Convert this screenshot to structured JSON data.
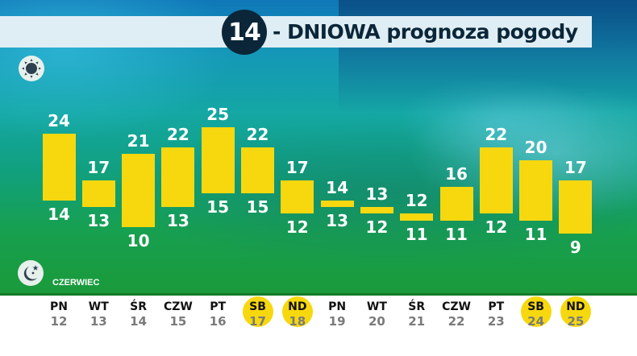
{
  "header": {
    "days_count": "14",
    "title": "- DNIOWA prognoza pogody"
  },
  "icons": {
    "day": "sun-icon",
    "night": "moon-stars-icon"
  },
  "month": "CZERWIEC",
  "colors": {
    "bar": "#f7d80e",
    "weekend_chip": "#f7d80e",
    "title_circle": "#0b2638",
    "title_band": "#dfeef4",
    "temp_text": "#ffffff"
  },
  "days": [
    {
      "name": "PN",
      "date": "12",
      "weekend": false,
      "max": 24,
      "min": 14
    },
    {
      "name": "WT",
      "date": "13",
      "weekend": false,
      "max": 17,
      "min": 13
    },
    {
      "name": "ŚR",
      "date": "14",
      "weekend": false,
      "max": 21,
      "min": 10
    },
    {
      "name": "CZW",
      "date": "15",
      "weekend": false,
      "max": 22,
      "min": 13
    },
    {
      "name": "PT",
      "date": "16",
      "weekend": false,
      "max": 25,
      "min": 15
    },
    {
      "name": "SB",
      "date": "17",
      "weekend": true,
      "max": 22,
      "min": 15
    },
    {
      "name": "ND",
      "date": "18",
      "weekend": true,
      "max": 17,
      "min": 12
    },
    {
      "name": "PN",
      "date": "19",
      "weekend": false,
      "max": 14,
      "min": 13
    },
    {
      "name": "WT",
      "date": "20",
      "weekend": false,
      "max": 13,
      "min": 12
    },
    {
      "name": "ŚR",
      "date": "21",
      "weekend": false,
      "max": 12,
      "min": 11
    },
    {
      "name": "CZW",
      "date": "22",
      "weekend": false,
      "max": 16,
      "min": 11
    },
    {
      "name": "PT",
      "date": "23",
      "weekend": false,
      "max": 22,
      "min": 12
    },
    {
      "name": "SB",
      "date": "24",
      "weekend": true,
      "max": 20,
      "min": 11
    },
    {
      "name": "ND",
      "date": "25",
      "weekend": true,
      "max": 17,
      "min": 9
    }
  ],
  "chart_data": {
    "type": "bar",
    "title": "14 - DNIOWA prognoza pogody",
    "subtitle": "CZERWIEC",
    "xlabel": "",
    "ylabel": "",
    "categories": [
      "PN 12",
      "WT 13",
      "ŚR 14",
      "CZW 15",
      "PT 16",
      "SB 17",
      "ND 18",
      "PN 19",
      "WT 20",
      "ŚR 21",
      "CZW 22",
      "PT 23",
      "SB 24",
      "ND 25"
    ],
    "series": [
      {
        "name": "max (day)",
        "values": [
          24,
          17,
          21,
          22,
          25,
          22,
          17,
          14,
          13,
          12,
          16,
          22,
          20,
          17
        ]
      },
      {
        "name": "min (night)",
        "values": [
          14,
          13,
          10,
          13,
          15,
          15,
          12,
          13,
          12,
          11,
          11,
          12,
          11,
          9
        ]
      }
    ],
    "bar_style": "floating range (min to max)",
    "ylim": [
      9,
      25
    ],
    "grid": false,
    "legend": "none (sun icon = max, moon icon = min)"
  }
}
